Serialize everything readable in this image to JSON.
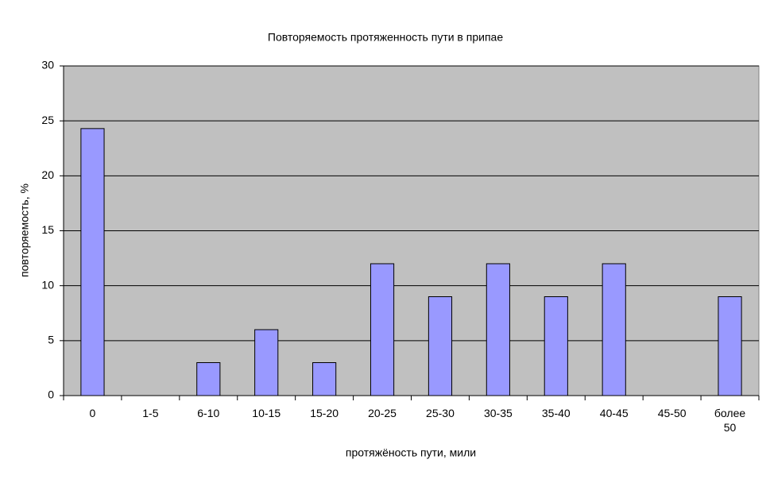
{
  "chart_data": {
    "type": "bar",
    "title": "Повторяемость протяженность пути в припае",
    "x_label": "протяжёность пути, мили",
    "y_label": "повторяемость, %",
    "categories": [
      "0",
      "1-5",
      "6-10",
      "10-15",
      "15-20",
      "20-25",
      "25-30",
      "30-35",
      "35-40",
      "40-45",
      "45-50",
      "более 50"
    ],
    "values": [
      24.3,
      0,
      3,
      6,
      3,
      12,
      9,
      12,
      9,
      12,
      0,
      9
    ],
    "color": "#9999ff",
    "plot_background": "#c0c0c0",
    "ylim": [
      0,
      30
    ],
    "yticks": [
      0,
      5,
      10,
      15,
      20,
      25,
      30
    ],
    "grid": true
  }
}
